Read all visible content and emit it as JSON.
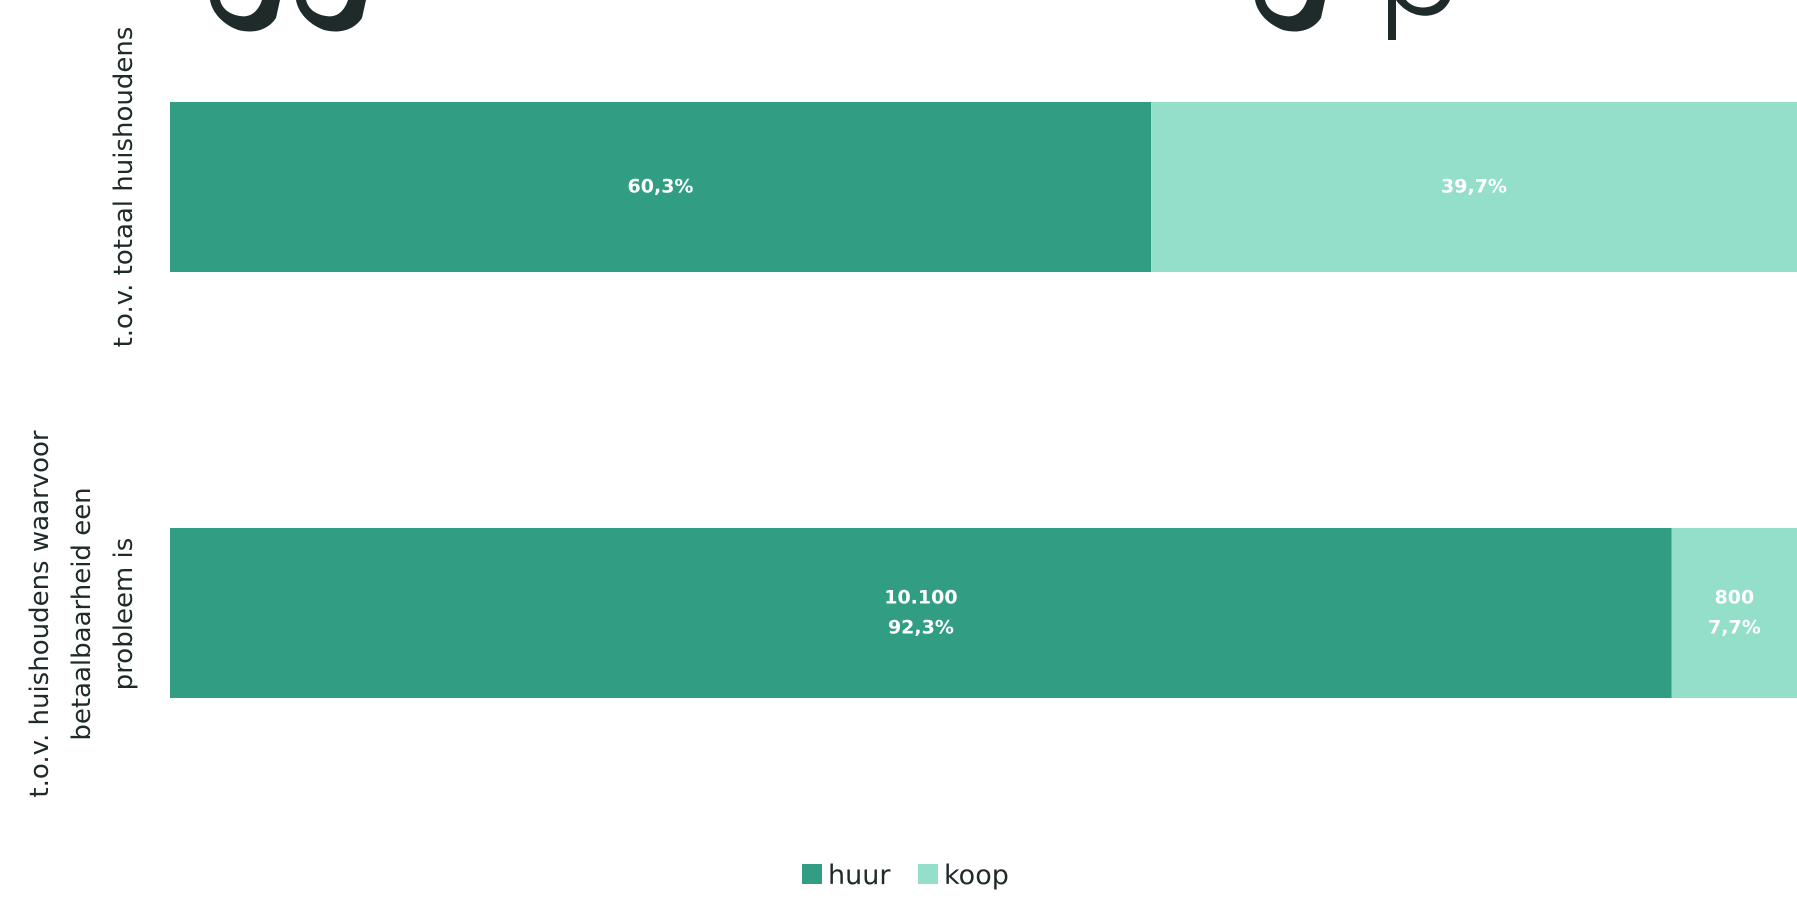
{
  "chart_data": {
    "type": "bar",
    "orientation": "horizontal",
    "stacking": "percent",
    "categories": [
      "t.o.v. totaal huishoudens",
      "t.o.v. huishoudens waarvoor betaalbaarheid een probleem is"
    ],
    "category_label_lines": [
      [
        "t.o.v. totaal huishoudens"
      ],
      [
        "t.o.v. huishoudens waarvoor",
        "betaalbaarheid een",
        "probleem is"
      ]
    ],
    "series": [
      {
        "name": "huur",
        "color": "#319e84",
        "values": [
          60.3,
          92.3
        ],
        "labels": [
          [
            "60,3%"
          ],
          [
            "10.100",
            "92,3%"
          ]
        ]
      },
      {
        "name": "koop",
        "color": "#93dfc9",
        "values": [
          39.7,
          7.7
        ],
        "labels": [
          [
            "39,7%"
          ],
          [
            "800",
            "7,7%"
          ]
        ]
      }
    ],
    "xlim": [
      0,
      100
    ],
    "legend": "bottom-center",
    "grid": false
  }
}
